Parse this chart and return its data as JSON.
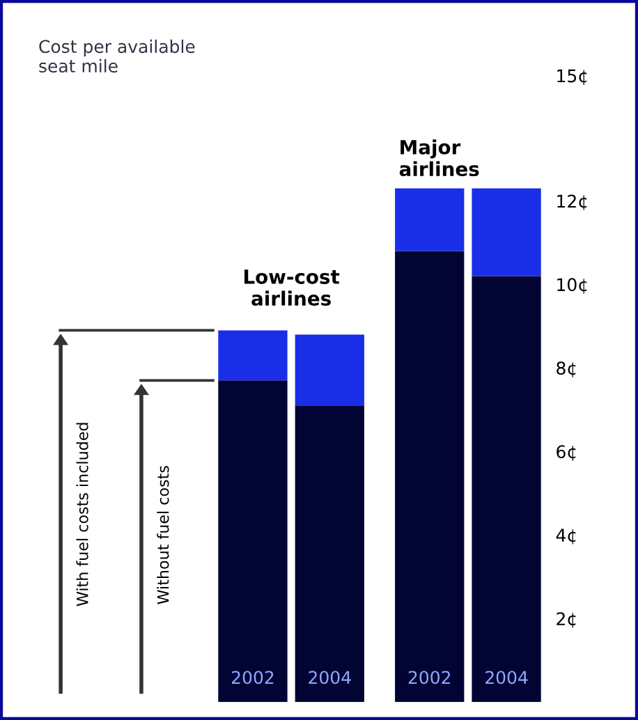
{
  "chart_data": {
    "type": "bar",
    "title": "Cost per available\nseat mile",
    "categories": [
      "2002",
      "2004",
      "2002",
      "2004"
    ],
    "stacked": true,
    "series": [
      {
        "color": "#020433",
        "values": [
          7.7,
          7.1,
          10.8,
          10.2
        ]
      },
      {
        "color": "#1a2ee8",
        "values": [
          1.2,
          1.7,
          1.5,
          2.1
        ]
      }
    ],
    "ylim": [
      0,
      15
    ],
    "yticks": [
      {
        "value": 2,
        "label": "2¢"
      },
      {
        "value": 4,
        "label": "4¢"
      },
      {
        "value": 6,
        "label": "6¢"
      },
      {
        "value": 8,
        "label": "8¢"
      },
      {
        "value": 10,
        "label": "10¢"
      },
      {
        "value": 12,
        "label": "12¢"
      },
      {
        "value": 15,
        "label": "15¢"
      }
    ],
    "annotations": [
      "Low-cost\nairlines",
      "Major\nairlines",
      "With fuel costs included",
      "Without fuel costs"
    ],
    "grid": false,
    "legend": false
  }
}
